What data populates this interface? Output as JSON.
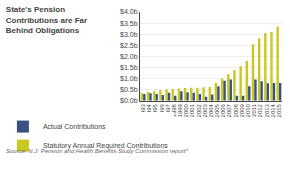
{
  "chart_data": {
    "type": "bar",
    "title": "State's Pension\nContributions are Far\nBehind Obligations",
    "categories": [
      "1993",
      "1994",
      "1995",
      "1996",
      "1997",
      "1998",
      "1999",
      "2000",
      "2001",
      "2002",
      "2003",
      "2004",
      "2005",
      "2006",
      "2007",
      "2008",
      "2009",
      "2010",
      "2011",
      "2012",
      "2013",
      "2014",
      "2015"
    ],
    "series": [
      {
        "name": "Statutory Annual Required Contributions",
        "color": "#c8c820",
        "values": [
          0.33,
          0.4,
          0.42,
          0.48,
          0.5,
          0.52,
          0.55,
          0.57,
          0.58,
          0.58,
          0.6,
          0.62,
          0.8,
          1.0,
          1.2,
          1.38,
          1.55,
          1.8,
          2.55,
          2.82,
          3.05,
          3.1,
          3.35
        ]
      },
      {
        "name": "Actual Contributions",
        "color": "#3a5080",
        "values": [
          0.3,
          0.33,
          0.3,
          0.25,
          0.35,
          0.22,
          0.42,
          0.38,
          0.35,
          0.3,
          0.18,
          0.28,
          0.65,
          0.9,
          0.95,
          0.22,
          0.22,
          0.65,
          0.95,
          0.88,
          0.78,
          0.8,
          0.8
        ]
      }
    ],
    "ylim": [
      0,
      4.0
    ],
    "yticks": [
      {
        "value": 4.0,
        "label": "$4.0b"
      },
      {
        "value": 3.5,
        "label": "$3.5b"
      },
      {
        "value": 3.0,
        "label": "$3.0b"
      },
      {
        "value": 2.5,
        "label": "$2.5b"
      },
      {
        "value": 2.0,
        "label": "$2.0b"
      },
      {
        "value": 1.5,
        "label": "$1.5b"
      },
      {
        "value": 1.0,
        "label": "$1.0b"
      },
      {
        "value": 0.5,
        "label": "$0.5b"
      },
      {
        "value": 0.0,
        "label": "$0.0b"
      }
    ],
    "grid": true,
    "legend": "bottom",
    "annotations": [
      {
        "text": "Source: N.J. Pension and Health Benefits Study Commission report*"
      }
    ]
  }
}
